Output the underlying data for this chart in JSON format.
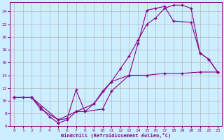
{
  "xlabel": "Windchill (Refroidissement éolien,°C)",
  "bg_color": "#cceeff",
  "line_color": "#880088",
  "grid_color": "#aaaaaa",
  "xlim": [
    -0.5,
    23.5
  ],
  "ylim": [
    6,
    25.5
  ],
  "xticks": [
    0,
    1,
    2,
    3,
    4,
    5,
    6,
    7,
    8,
    9,
    10,
    11,
    12,
    13,
    14,
    15,
    16,
    17,
    18,
    19,
    20,
    21,
    22,
    23
  ],
  "yticks": [
    6,
    8,
    10,
    12,
    14,
    16,
    18,
    20,
    22,
    24
  ],
  "line1_x": [
    0,
    1,
    2,
    3,
    4,
    5,
    6,
    7,
    8,
    9,
    10,
    11,
    12,
    13,
    14,
    15,
    16,
    17,
    18,
    19,
    20,
    21,
    22,
    23
  ],
  "line1_y": [
    10.5,
    10.5,
    10.5,
    9.0,
    7.5,
    6.5,
    7.0,
    8.3,
    8.3,
    9.5,
    11.5,
    13.0,
    15.0,
    17.0,
    19.5,
    22.0,
    23.0,
    24.5,
    25.0,
    25.0,
    24.5,
    17.5,
    16.5,
    14.5
  ],
  "line2_x": [
    0,
    2,
    3,
    5,
    6,
    7,
    8,
    10,
    11,
    13,
    14,
    15,
    16,
    17,
    18,
    20,
    21,
    22,
    23
  ],
  "line2_y": [
    10.5,
    10.5,
    8.7,
    7.0,
    7.2,
    11.7,
    8.3,
    8.7,
    11.5,
    14.0,
    19.0,
    24.2,
    24.5,
    24.8,
    22.5,
    22.3,
    17.5,
    16.5,
    14.5
  ],
  "line3_x": [
    0,
    2,
    5,
    7,
    9,
    11,
    13,
    15,
    17,
    19,
    21,
    23
  ],
  "line3_y": [
    10.5,
    10.5,
    7.0,
    8.3,
    9.5,
    13.0,
    14.0,
    14.0,
    14.3,
    14.3,
    14.5,
    14.5
  ]
}
